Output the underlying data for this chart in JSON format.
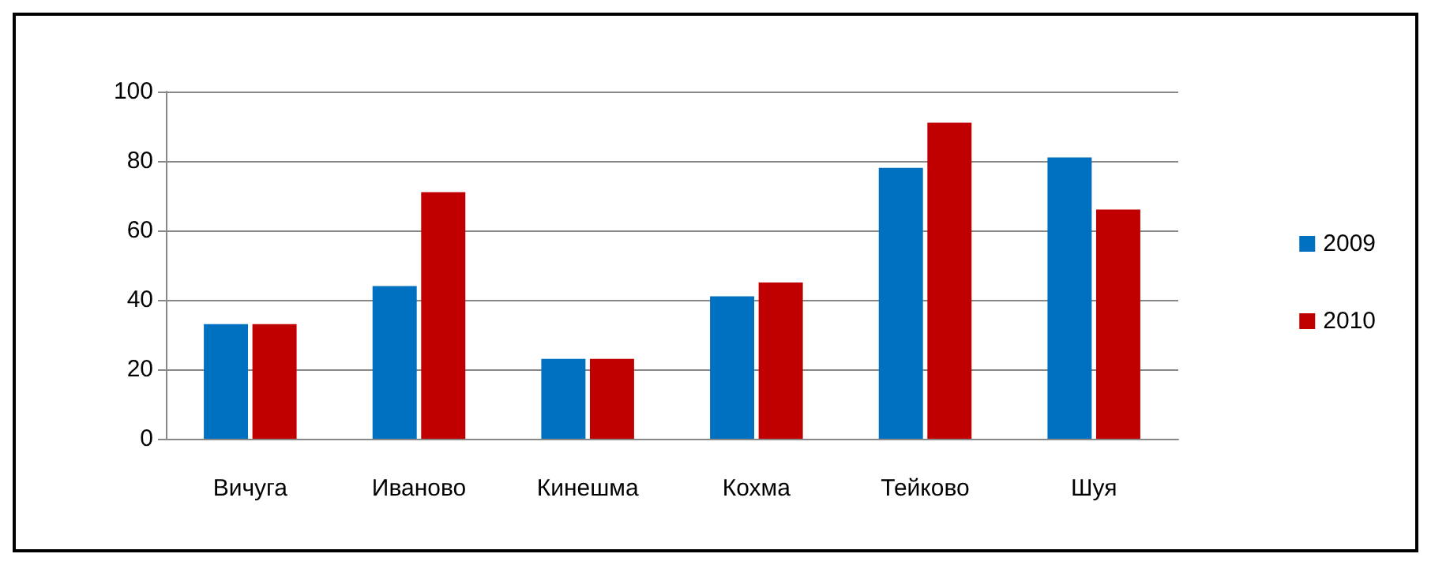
{
  "chart_data": {
    "type": "bar",
    "categories": [
      "Вичуга",
      "Иваново",
      "Кинешма",
      "Кохма",
      "Тейково",
      "Шуя"
    ],
    "series": [
      {
        "name": "2009",
        "color": "#0070c0",
        "values": [
          33,
          44,
          23,
          41,
          78,
          81
        ]
      },
      {
        "name": "2010",
        "color": "#c00000",
        "values": [
          33,
          71,
          23,
          45,
          91,
          66
        ]
      }
    ],
    "ylim": [
      0,
      100
    ],
    "yticks": [
      0,
      20,
      40,
      60,
      80,
      100
    ],
    "grid": "y",
    "legend": "right"
  }
}
